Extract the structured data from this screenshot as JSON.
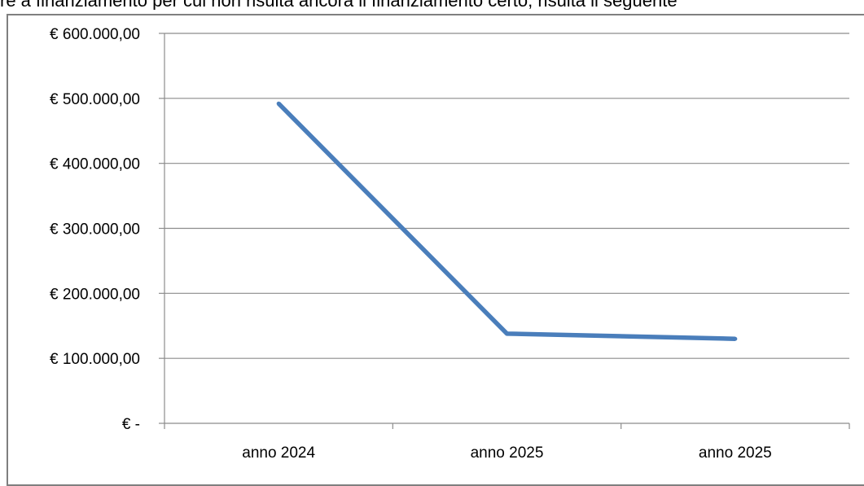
{
  "page": {
    "top_text": "re a finanziamento per cui non risulta ancora il finanziamento certo, risulta il seguente"
  },
  "chart_data": {
    "type": "line",
    "title": "",
    "xlabel": "",
    "ylabel": "",
    "categories": [
      "anno 2024",
      "anno 2025",
      "anno 2025"
    ],
    "series": [
      {
        "values": [
          492000,
          138000,
          130000
        ],
        "color": "#4a7ebb"
      }
    ],
    "ylim": [
      0,
      600000
    ],
    "y_ticks": [
      0,
      100000,
      200000,
      300000,
      400000,
      500000,
      600000
    ],
    "y_tick_labels": [
      "€ -",
      "€ 100.000,00",
      "€ 200.000,00",
      "€ 300.000,00",
      "€ 400.000,00",
      "€ 500.000,00",
      "€ 600.000,00"
    ],
    "grid": true,
    "legend": "none"
  }
}
